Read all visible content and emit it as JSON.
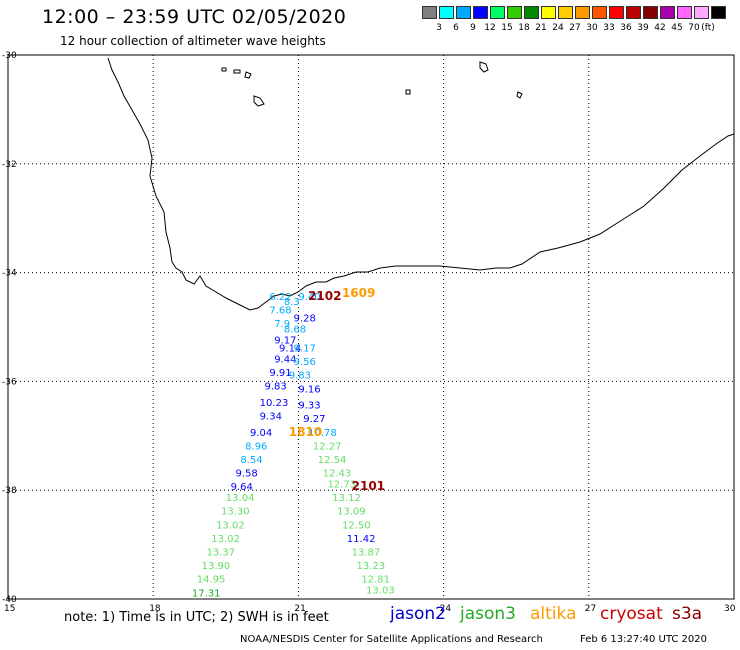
{
  "header": {
    "title": "12:00 – 23:59 UTC 02/05/2020",
    "subtitle": "12 hour collection of altimeter wave heights"
  },
  "colorbar": {
    "unit": "(ft)",
    "colors": [
      "#808080",
      "#00ffff",
      "#00aaff",
      "#0000ff",
      "#00ff66",
      "#33cc00",
      "#008800",
      "#ffff00",
      "#ffcc00",
      "#ff9900",
      "#ff5500",
      "#ff0000",
      "#bb0000",
      "#880000",
      "#aa00aa",
      "#ff66ff",
      "#ffaaff",
      "#000000"
    ],
    "labels": [
      "3",
      "6",
      "9",
      "12",
      "15",
      "18",
      "21",
      "24",
      "27",
      "30",
      "33",
      "36",
      "39",
      "42",
      "45",
      "70"
    ]
  },
  "axes": {
    "lat_labels": [
      "-30",
      "-32",
      "-34",
      "-36",
      "-38",
      "-40"
    ],
    "lon_labels": [
      "15",
      "18",
      "21",
      "24",
      "27",
      "30"
    ]
  },
  "swh_obs": [
    {
      "lat": -34.5,
      "lon": 20.4,
      "text": "6.22",
      "color": "#00aaff"
    },
    {
      "lat": -34.5,
      "lon": 21.0,
      "text": "9.40",
      "color": "#00aaff"
    },
    {
      "lat": -34.6,
      "lon": 20.7,
      "text": "8.3",
      "color": "#00aaff"
    },
    {
      "lat": -34.75,
      "lon": 20.4,
      "text": "7.68",
      "color": "#00aaff"
    },
    {
      "lat": -34.9,
      "lon": 20.9,
      "text": "9.28",
      "color": "#0000ff"
    },
    {
      "lat": -35.0,
      "lon": 20.5,
      "text": "7.9",
      "color": "#00aaff"
    },
    {
      "lat": -35.1,
      "lon": 20.7,
      "text": "8.68",
      "color": "#00aaff"
    },
    {
      "lat": -35.3,
      "lon": 20.5,
      "text": "9.17",
      "color": "#0000ff"
    },
    {
      "lat": -35.45,
      "lon": 20.6,
      "text": "9.14",
      "color": "#0000ff"
    },
    {
      "lat": -35.45,
      "lon": 20.9,
      "text": "9.17",
      "color": "#00aaff"
    },
    {
      "lat": -35.65,
      "lon": 20.5,
      "text": "9.44",
      "color": "#0000ff"
    },
    {
      "lat": -35.7,
      "lon": 20.9,
      "text": "9.56",
      "color": "#00aaff"
    },
    {
      "lat": -35.9,
      "lon": 20.4,
      "text": "9.91",
      "color": "#0000ff"
    },
    {
      "lat": -35.95,
      "lon": 20.8,
      "text": "9.83",
      "color": "#00aaff"
    },
    {
      "lat": -36.15,
      "lon": 20.3,
      "text": "9.83",
      "color": "#0000ff"
    },
    {
      "lat": -36.2,
      "lon": 21.0,
      "text": "9.16",
      "color": "#0000ff"
    },
    {
      "lat": -36.45,
      "lon": 20.2,
      "text": "10.23",
      "color": "#0000ff"
    },
    {
      "lat": -36.5,
      "lon": 21.0,
      "text": "9.33",
      "color": "#0000ff"
    },
    {
      "lat": -36.7,
      "lon": 20.2,
      "text": "9.34",
      "color": "#0000ff"
    },
    {
      "lat": -36.75,
      "lon": 21.1,
      "text": "9.27",
      "color": "#0000ff"
    },
    {
      "lat": -37.0,
      "lon": 20.0,
      "text": "9.04",
      "color": "#0000ff"
    },
    {
      "lat": -37.0,
      "lon": 21.2,
      "text": "10.78",
      "color": "#00aaff"
    },
    {
      "lat": -37.25,
      "lon": 19.9,
      "text": "8.96",
      "color": "#00aaff"
    },
    {
      "lat": -37.25,
      "lon": 21.3,
      "text": "12.27",
      "color": "#66dd66"
    },
    {
      "lat": -37.5,
      "lon": 19.8,
      "text": "8.54",
      "color": "#00aaff"
    },
    {
      "lat": -37.5,
      "lon": 21.4,
      "text": "12.54",
      "color": "#66dd66"
    },
    {
      "lat": -37.75,
      "lon": 19.7,
      "text": "9.58",
      "color": "#0000ff"
    },
    {
      "lat": -37.75,
      "lon": 21.5,
      "text": "12.43",
      "color": "#66dd66"
    },
    {
      "lat": -37.95,
      "lon": 21.6,
      "text": "12.73",
      "color": "#66dd66"
    },
    {
      "lat": -38.0,
      "lon": 19.6,
      "text": "9.64",
      "color": "#0000ff"
    },
    {
      "lat": -38.2,
      "lon": 19.5,
      "text": "13.04",
      "color": "#66dd66"
    },
    {
      "lat": -38.2,
      "lon": 21.7,
      "text": "13.12",
      "color": "#66dd66"
    },
    {
      "lat": -38.45,
      "lon": 19.4,
      "text": "13.30",
      "color": "#66dd66"
    },
    {
      "lat": -38.45,
      "lon": 21.8,
      "text": "13.09",
      "color": "#66dd66"
    },
    {
      "lat": -38.7,
      "lon": 19.3,
      "text": "13.02",
      "color": "#66dd66"
    },
    {
      "lat": -38.7,
      "lon": 21.9,
      "text": "12.50",
      "color": "#66dd66"
    },
    {
      "lat": -38.95,
      "lon": 19.2,
      "text": "13.02",
      "color": "#66dd66"
    },
    {
      "lat": -38.95,
      "lon": 22.0,
      "text": "11.42",
      "color": "#0000ff"
    },
    {
      "lat": -39.2,
      "lon": 19.1,
      "text": "13.37",
      "color": "#66dd66"
    },
    {
      "lat": -39.2,
      "lon": 22.1,
      "text": "13.87",
      "color": "#66dd66"
    },
    {
      "lat": -39.45,
      "lon": 19.0,
      "text": "13.90",
      "color": "#66dd66"
    },
    {
      "lat": -39.45,
      "lon": 22.2,
      "text": "13.23",
      "color": "#66dd66"
    },
    {
      "lat": -39.7,
      "lon": 18.9,
      "text": "14.95",
      "color": "#66dd66"
    },
    {
      "lat": -39.7,
      "lon": 22.3,
      "text": "12.81",
      "color": "#66dd66"
    },
    {
      "lat": -39.95,
      "lon": 18.8,
      "text": "17.31",
      "color": "#22aa22"
    },
    {
      "lat": -39.9,
      "lon": 22.4,
      "text": "13.03",
      "color": "#66dd66"
    }
  ],
  "pass_labels": [
    {
      "lat": -34.5,
      "lon": 21.2,
      "text": "2102",
      "color": "#990000"
    },
    {
      "lat": -34.45,
      "lon": 21.9,
      "text": "1609",
      "color": "#ff9900"
    },
    {
      "lat": -37.0,
      "lon": 20.8,
      "text": "1810",
      "color": "#ff9900"
    },
    {
      "lat": -38.0,
      "lon": 22.1,
      "text": "2101",
      "color": "#990000"
    }
  ],
  "footer": {
    "note": "note:  1) Time is in UTC; 2) SWH is in feet",
    "satellites": [
      {
        "name": "jason2",
        "color": "#0000cc"
      },
      {
        "name": "jason3",
        "color": "#22aa22"
      },
      {
        "name": "altika",
        "color": "#ff9900"
      },
      {
        "name": "cryosat",
        "color": "#cc0000"
      },
      {
        "name": "s3a",
        "color": "#880000"
      }
    ],
    "credit": "NOAA/NESDIS Center for Satellite Applications and Research",
    "timestamp": "Feb  6 13:27:40 UTC 2020"
  }
}
